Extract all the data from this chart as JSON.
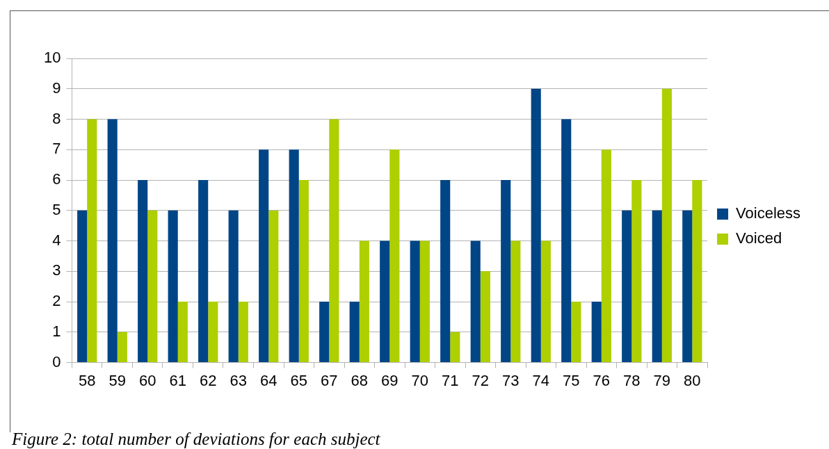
{
  "chart_data": {
    "type": "bar",
    "categories": [
      "58",
      "59",
      "60",
      "61",
      "62",
      "63",
      "64",
      "65",
      "67",
      "68",
      "69",
      "70",
      "71",
      "72",
      "73",
      "74",
      "75",
      "76",
      "78",
      "79",
      "80"
    ],
    "series": [
      {
        "name": "Voiceless",
        "color": "#004586",
        "values": [
          5,
          8,
          6,
          5,
          6,
          5,
          7,
          7,
          2,
          2,
          4,
          4,
          6,
          4,
          6,
          9,
          8,
          2,
          5,
          5,
          5
        ]
      },
      {
        "name": "Voiced",
        "color": "#aecf00",
        "values": [
          8,
          1,
          5,
          2,
          2,
          2,
          5,
          6,
          8,
          4,
          7,
          4,
          1,
          3,
          4,
          4,
          2,
          7,
          6,
          9,
          6
        ]
      }
    ],
    "ylim": [
      0,
      10
    ],
    "yticks": [
      0,
      1,
      2,
      3,
      4,
      5,
      6,
      7,
      8,
      9,
      10
    ],
    "grid": "y",
    "legend": "right",
    "annotations": [
      "Figure 2: total number of deviations for each subject"
    ]
  }
}
